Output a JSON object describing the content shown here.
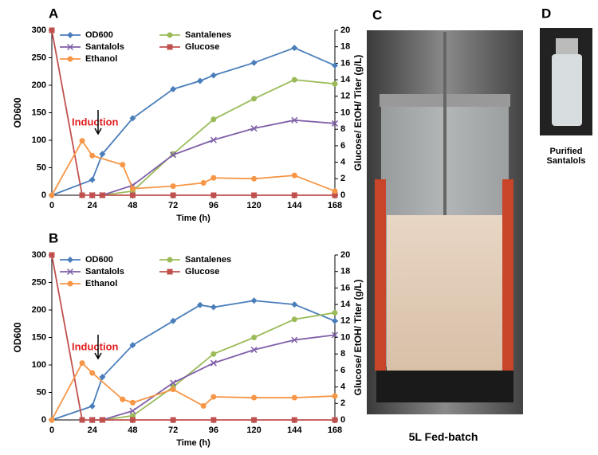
{
  "chart_data": [
    {
      "type": "line",
      "panel_label": "A",
      "xlabel": "Time (h)",
      "ylabel": "OD600",
      "y2label": "Glucose/ EtOH/ Titer (g/L)",
      "xlim": [
        0,
        168
      ],
      "xticks": [
        0,
        24,
        48,
        72,
        96,
        120,
        144,
        168
      ],
      "ylim": [
        0,
        300
      ],
      "yticks": [
        0,
        50,
        100,
        150,
        200,
        250,
        300
      ],
      "y2lim": [
        0,
        20
      ],
      "y2ticks": [
        0,
        2,
        4,
        6,
        8,
        10,
        12,
        14,
        16,
        18,
        20
      ],
      "annotation": "Induction",
      "series": [
        {
          "name": "OD600",
          "color": "#4a7ebb",
          "marker": "diamond",
          "x": [
            0,
            24,
            30,
            48,
            72,
            88,
            96,
            120,
            144,
            168
          ],
          "values": [
            0,
            28,
            75,
            140,
            193,
            208,
            218,
            241,
            268,
            236
          ]
        },
        {
          "name": "Santalenes",
          "color": "#9bbb59",
          "marker": "circle",
          "axis": "y2",
          "x": [
            24,
            30,
            48,
            72,
            96,
            120,
            144,
            168
          ],
          "values": [
            0,
            0,
            0.5,
            5,
            9.2,
            11.7,
            14,
            13.5
          ]
        },
        {
          "name": "Santalols",
          "color": "#7f5fa8",
          "marker": "x",
          "axis": "y2",
          "x": [
            24,
            30,
            48,
            72,
            96,
            120,
            144,
            168
          ],
          "values": [
            0,
            0,
            1.2,
            4.9,
            6.7,
            8.1,
            9.1,
            8.7
          ]
        },
        {
          "name": "Glucose",
          "color": "#c0504d",
          "marker": "square",
          "axis": "y2",
          "x": [
            0,
            18,
            24,
            30,
            48,
            72,
            96,
            120,
            144,
            168
          ],
          "values": [
            20,
            0,
            0,
            0,
            0,
            0,
            0,
            0,
            0,
            0
          ]
        },
        {
          "name": "Ethanol",
          "color": "#f79646",
          "marker": "circle",
          "axis": "y2",
          "x": [
            0,
            18,
            24,
            42,
            48,
            72,
            90,
            96,
            120,
            144,
            168
          ],
          "values": [
            0,
            6.6,
            4.8,
            3.7,
            0.8,
            1.1,
            1.5,
            2.1,
            2,
            2.4,
            0.5
          ]
        }
      ]
    },
    {
      "type": "line",
      "panel_label": "B",
      "xlabel": "Time (h)",
      "ylabel": "OD600",
      "y2label": "Glucose/ EtOH/ Titer (g/L)",
      "xlim": [
        0,
        168
      ],
      "xticks": [
        0,
        24,
        48,
        72,
        96,
        120,
        144,
        168
      ],
      "ylim": [
        0,
        300
      ],
      "yticks": [
        0,
        50,
        100,
        150,
        200,
        250,
        300
      ],
      "y2lim": [
        0,
        20
      ],
      "y2ticks": [
        0,
        2,
        4,
        6,
        8,
        10,
        12,
        14,
        16,
        18,
        20
      ],
      "annotation": "Induction",
      "series": [
        {
          "name": "OD600",
          "color": "#4a7ebb",
          "marker": "diamond",
          "x": [
            0,
            24,
            30,
            48,
            72,
            88,
            96,
            120,
            144,
            168
          ],
          "values": [
            0,
            25,
            78,
            136,
            180,
            209,
            205,
            217,
            210,
            180
          ]
        },
        {
          "name": "Santalenes",
          "color": "#9bbb59",
          "marker": "circle",
          "axis": "y2",
          "x": [
            24,
            30,
            48,
            72,
            96,
            120,
            144,
            168
          ],
          "values": [
            0,
            0,
            0.5,
            4,
            8,
            10,
            12.2,
            13
          ]
        },
        {
          "name": "Santalols",
          "color": "#7f5fa8",
          "marker": "x",
          "axis": "y2",
          "x": [
            24,
            30,
            48,
            72,
            96,
            120,
            144,
            168
          ],
          "values": [
            0,
            0,
            1.1,
            4.5,
            6.9,
            8.5,
            9.7,
            10.3
          ]
        },
        {
          "name": "Glucose",
          "color": "#c0504d",
          "marker": "square",
          "axis": "y2",
          "x": [
            0,
            18,
            24,
            30,
            48,
            72,
            96,
            120,
            144,
            168
          ],
          "values": [
            20,
            0,
            0,
            0,
            0,
            0,
            0,
            0,
            0,
            0
          ]
        },
        {
          "name": "Ethanol",
          "color": "#f79646",
          "marker": "circle",
          "axis": "y2",
          "x": [
            0,
            18,
            24,
            42,
            48,
            72,
            90,
            96,
            120,
            144,
            168
          ],
          "values": [
            0,
            6.9,
            5.7,
            2.5,
            2.1,
            3.7,
            1.7,
            2.8,
            2.7,
            2.7,
            2.9
          ]
        }
      ]
    }
  ],
  "photos": [
    {
      "label": "C",
      "caption": "5L Fed-batch"
    },
    {
      "label": "D",
      "caption": "Purified Santalols"
    }
  ]
}
